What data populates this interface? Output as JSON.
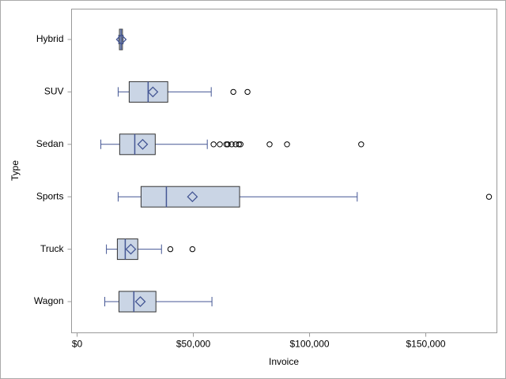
{
  "chart_data": {
    "type": "box",
    "orientation": "horizontal",
    "x_label": "Invoice",
    "y_label": "Type",
    "categories": [
      "Hybrid",
      "SUV",
      "Sedan",
      "Sports",
      "Truck",
      "Wagon"
    ],
    "boxes": [
      {
        "min": 17900,
        "q1": 18200,
        "median": 18900,
        "q3": 19500,
        "max": 19800,
        "mean": 19000,
        "outliers": []
      },
      {
        "min": 17650,
        "q1": 22400,
        "median": 30550,
        "q3": 39000,
        "max": 57700,
        "mean": 32600,
        "outliers": [
          67200,
          73300
        ]
      },
      {
        "min": 10200,
        "q1": 18300,
        "median": 24800,
        "q3": 33600,
        "max": 56000,
        "mean": 28200,
        "outliers": [
          58700,
          61400,
          64200,
          64800,
          66500,
          68200,
          69600,
          70300,
          82800,
          90300,
          122200
        ]
      },
      {
        "min": 17650,
        "q1": 27500,
        "median": 38400,
        "q3": 69900,
        "max": 120500,
        "mean": 49600,
        "outliers": [
          177200
        ]
      },
      {
        "min": 12600,
        "q1": 17300,
        "median": 20700,
        "q3": 26100,
        "max": 36300,
        "mean": 23100,
        "outliers": [
          40100,
          49600
        ]
      },
      {
        "min": 11900,
        "q1": 18000,
        "median": 24400,
        "q3": 33900,
        "max": 58000,
        "mean": 27200,
        "outliers": []
      }
    ],
    "xlim": [
      -2400,
      180600
    ],
    "xticks": [
      {
        "value": 0,
        "label": "$0"
      },
      {
        "value": 50000,
        "label": "$50,000"
      },
      {
        "value": 100000,
        "label": "$100,000"
      },
      {
        "value": 150000,
        "label": "$150,000"
      }
    ],
    "fill_color": "#cad5e5",
    "line_color": "#445694",
    "outlier_color": "#000000"
  }
}
